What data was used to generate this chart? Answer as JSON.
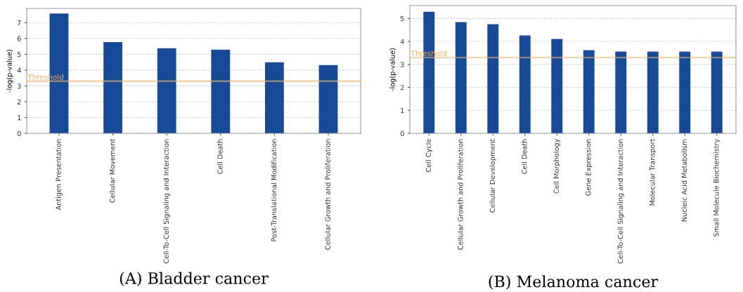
{
  "chart_data": [
    {
      "type": "bar",
      "title": "(A) Bladder cancer",
      "ylabel": "-log(p-value)",
      "categories": [
        "Antigen Presentation",
        "Cellular Movement",
        "Cell-To-Cell Signaling and Interaction",
        "Cell Death",
        "Post-Translational Modification",
        "Cellular Growth and Proliferation"
      ],
      "values": [
        7.58,
        5.77,
        5.38,
        5.29,
        4.49,
        4.32
      ],
      "color": "#174a97",
      "ylim": [
        0,
        7.9
      ],
      "yticks": [
        0,
        1,
        2,
        3,
        4,
        5,
        6,
        7
      ],
      "grid": "y",
      "ref_lines": [
        {
          "axis": "y",
          "value": 3.3,
          "label": "Threshold",
          "color": "#f5b35a"
        }
      ]
    },
    {
      "type": "bar",
      "title": "(B) Melanoma cancer",
      "ylabel": "-log(p-value)",
      "categories": [
        "Cell Cycle",
        "Cellular Growth and Proliferation",
        "Cellular Development",
        "Cell Death",
        "Cell Morphology",
        "Gene Expression",
        "Cell-To-Cell Signaling and Interaction",
        "Molecular Transport",
        "Nucleic Acid Metabolism",
        "Small Molecule Biochemistry"
      ],
      "values": [
        5.29,
        4.84,
        4.75,
        4.26,
        4.11,
        3.62,
        3.56,
        3.56,
        3.56,
        3.56
      ],
      "color": "#174a97",
      "ylim": [
        0,
        5.56
      ],
      "yticks": [
        0,
        1,
        2,
        3,
        4,
        5
      ],
      "grid": "y",
      "ref_lines": [
        {
          "axis": "y",
          "value": 3.3,
          "label": "Threshold",
          "color": "#f5b35a"
        }
      ]
    }
  ]
}
